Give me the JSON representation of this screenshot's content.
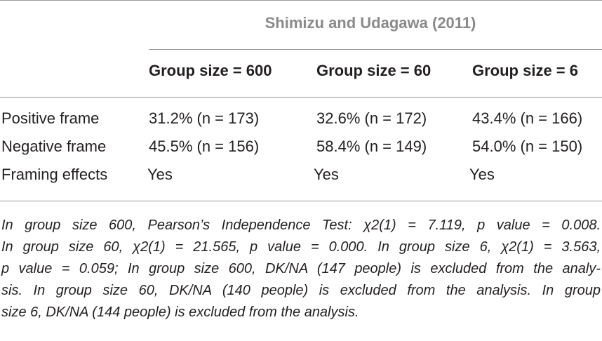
{
  "table": {
    "super_header": "Shimizu and Udagawa (2011)",
    "columns": [
      "Group size = 600",
      "Group size = 60",
      "Group size = 6"
    ],
    "rows": [
      {
        "label": "Positive frame",
        "cells": [
          "31.2% (n = 173)",
          "32.6% (n = 172)",
          "43.4% (n = 166)"
        ]
      },
      {
        "label": "Negative frame",
        "cells": [
          "45.5% (n = 156)",
          "58.4% (n = 149)",
          "54.0% (n = 150)"
        ]
      },
      {
        "label": "Framing effects",
        "cells": [
          "Yes",
          "Yes",
          "Yes"
        ]
      }
    ]
  },
  "footnote": {
    "lines": [
      "In group size 600, Pearson’s Independence Test: χ2(1) = 7.119, p value = 0.008.",
      "In group size 60, χ2(1) = 21.565, p value = 0.000. In group size 6, χ2(1) = 3.563,",
      "p value = 0.059; In group size 600, DK/NA (147 people) is excluded from the analy-",
      "sis. In group size 60, DK/NA (140 people) is excluded from the analysis. In group",
      "size 6, DK/NA (144 people) is excluded from the analysis."
    ]
  }
}
